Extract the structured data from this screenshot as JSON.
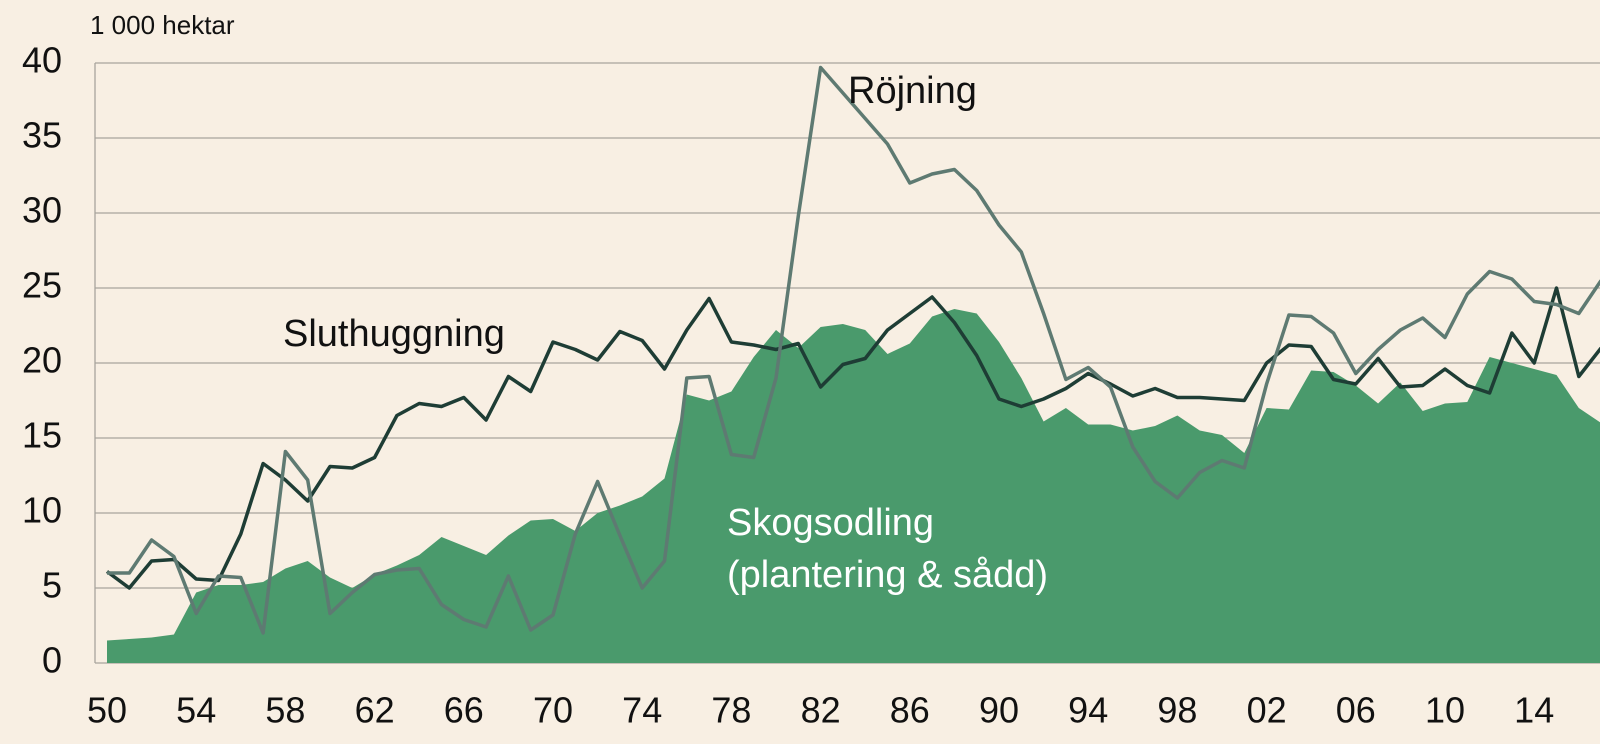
{
  "chart_data": {
    "type": "line",
    "unit_label": "1 000 hektar",
    "annotations": [
      "Röjning",
      "Sluthuggning",
      "Skogsodling",
      "(plantering & sådd)"
    ],
    "categories": [
      "50",
      null,
      null,
      null,
      "54",
      null,
      null,
      null,
      "58",
      null,
      null,
      null,
      "62",
      null,
      null,
      null,
      "66",
      null,
      null,
      null,
      "70",
      null,
      null,
      null,
      "74",
      null,
      null,
      null,
      "78",
      null,
      null,
      null,
      "82",
      null,
      null,
      null,
      "86",
      null,
      null,
      null,
      "90",
      null,
      null,
      null,
      "94",
      null,
      null,
      null,
      "98",
      null,
      null,
      null,
      "02",
      null,
      null,
      null,
      "06",
      null,
      null,
      null,
      "10",
      null,
      null,
      null,
      "14",
      null,
      null,
      null
    ],
    "series": [
      {
        "name": "Skogsodling",
        "type": "area",
        "color": "#4a9a6c",
        "values": [
          1.5,
          1.6,
          1.7,
          1.9,
          4.7,
          5.2,
          5.2,
          5.4,
          6.3,
          6.8,
          5.7,
          5.0,
          5.9,
          6.5,
          7.2,
          8.4,
          7.8,
          7.2,
          8.5,
          9.5,
          9.6,
          8.8,
          10.0,
          10.5,
          11.1,
          12.3,
          17.9,
          17.5,
          18.1,
          20.4,
          22.2,
          21.0,
          22.4,
          22.6,
          22.2,
          20.6,
          21.3,
          23.1,
          23.6,
          23.3,
          21.4,
          19.0,
          16.1,
          17.0,
          15.9,
          15.9,
          15.5,
          15.8,
          16.5,
          15.5,
          15.2,
          14.0,
          17.0,
          16.9,
          19.5,
          19.4,
          18.5,
          17.3,
          18.7,
          16.8,
          17.3,
          17.4,
          20.4,
          20.0,
          19.6,
          19.2,
          17.0,
          16.0
        ]
      },
      {
        "name": "Sluthuggning",
        "type": "line",
        "color": "#1e3d35",
        "values": [
          6.1,
          5.0,
          6.8,
          6.9,
          5.6,
          5.5,
          8.6,
          13.3,
          12.2,
          10.8,
          13.1,
          13.0,
          13.7,
          16.5,
          17.3,
          17.1,
          17.7,
          16.2,
          19.1,
          18.1,
          21.4,
          20.9,
          20.2,
          22.1,
          21.5,
          19.6,
          22.2,
          24.3,
          21.4,
          21.2,
          20.9,
          21.3,
          18.4,
          19.9,
          20.3,
          22.2,
          23.3,
          24.4,
          22.7,
          20.5,
          17.6,
          17.1,
          17.6,
          18.3,
          19.3,
          18.6,
          17.8,
          18.3,
          17.7,
          17.7,
          17.6,
          17.5,
          20.0,
          21.2,
          21.1,
          18.9,
          18.6,
          20.3,
          18.4,
          18.5,
          19.6,
          18.5,
          18.0,
          22.0,
          20.0,
          25.0,
          19.1,
          21.0
        ]
      },
      {
        "name": "Röjning",
        "type": "line",
        "color": "#5e7a72",
        "values": [
          6.0,
          6.0,
          8.2,
          7.1,
          3.3,
          5.8,
          5.7,
          2.0,
          14.1,
          12.2,
          3.3,
          4.7,
          5.9,
          6.2,
          6.3,
          3.9,
          2.9,
          2.4,
          5.8,
          2.2,
          3.2,
          8.6,
          12.1,
          8.5,
          5.0,
          6.8,
          19.0,
          19.1,
          13.9,
          13.7,
          19.0,
          29.8,
          39.7,
          38.0,
          36.3,
          34.6,
          32.0,
          32.6,
          32.9,
          31.5,
          29.2,
          27.4,
          23.3,
          18.9,
          19.7,
          18.4,
          14.4,
          12.1,
          11.0,
          12.7,
          13.5,
          13.0,
          18.6,
          23.2,
          23.1,
          22.0,
          19.3,
          20.9,
          22.2,
          23.0,
          21.7,
          24.6,
          26.1,
          25.6,
          24.1,
          23.9,
          23.3,
          25.5
        ]
      }
    ],
    "ylim": [
      0,
      40
    ],
    "yticks": [
      0,
      5,
      10,
      15,
      20,
      25,
      30,
      35,
      40
    ],
    "grid": true
  }
}
